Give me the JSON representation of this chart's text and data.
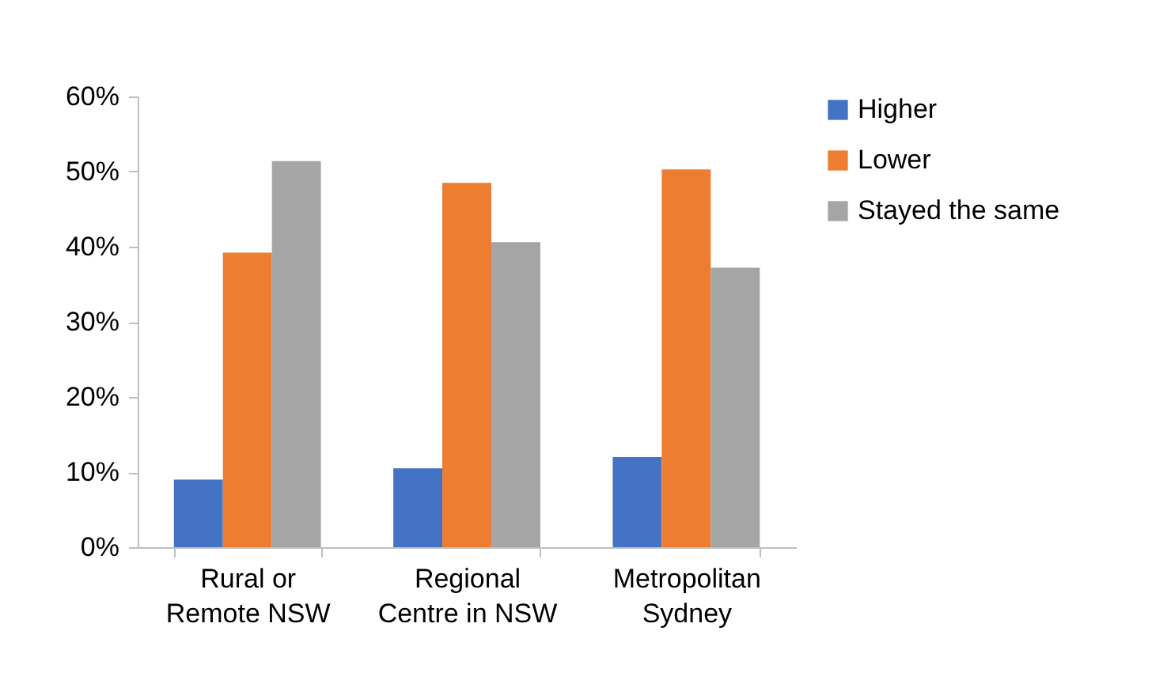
{
  "chart_data": {
    "type": "bar",
    "categories": [
      "Rural or\nRemote NSW",
      "Regional\nCentre in NSW",
      "Metropolitan\nSydney"
    ],
    "series": [
      {
        "name": "Higher",
        "color": "#4472c4",
        "values": [
          9.0,
          10.5,
          12.0
        ]
      },
      {
        "name": "Lower",
        "color": "#ed7d31",
        "values": [
          39.2,
          48.5,
          50.3
        ]
      },
      {
        "name": "Stayed the same",
        "color": "#a5a5a5",
        "values": [
          51.4,
          40.6,
          37.2
        ]
      }
    ],
    "ylim": [
      0,
      60
    ],
    "yticks": [
      {
        "value": 0,
        "label": "0%"
      },
      {
        "value": 10,
        "label": "10%"
      },
      {
        "value": 20,
        "label": "20%"
      },
      {
        "value": 30,
        "label": "30%"
      },
      {
        "value": 40,
        "label": "40%"
      },
      {
        "value": 50,
        "label": "50%"
      },
      {
        "value": 60,
        "label": "60%"
      }
    ],
    "grid": false,
    "legend": "right"
  }
}
